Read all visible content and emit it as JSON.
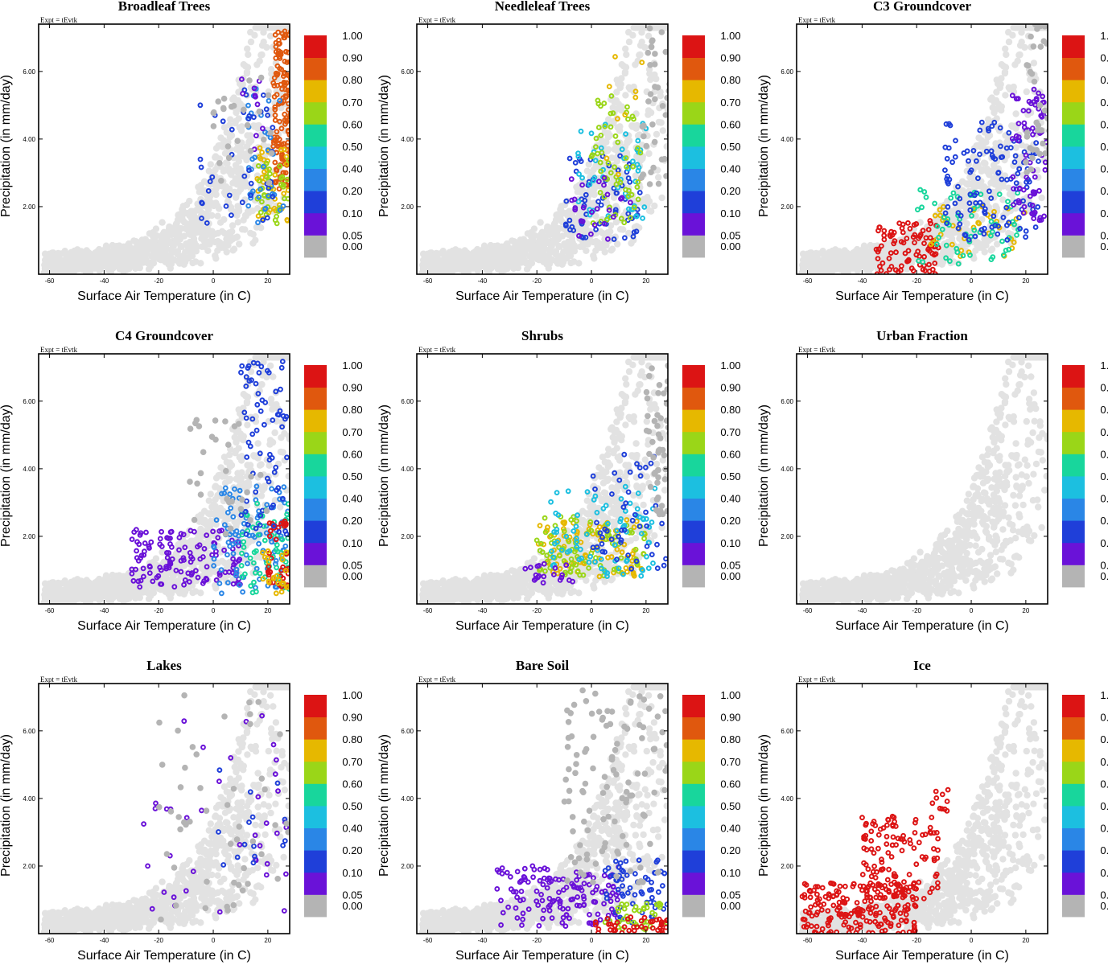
{
  "figure": {
    "expt_label": "Expt = tEvtk",
    "xlabel": "Surface Air Temperature (in C)",
    "ylabel": "Precipitation (in mm/day)",
    "xlim": [
      -64,
      28
    ],
    "ylim": [
      0,
      7.4
    ],
    "xticks": [
      -60,
      -40,
      -20,
      0,
      20
    ],
    "yticks": [
      2.0,
      4.0,
      6.0
    ],
    "ytick_labels": [
      "2.00",
      "4.00",
      "6.00"
    ],
    "colorbar": {
      "labels": [
        "0.00",
        "0.05",
        "0.10",
        "0.20",
        "0.40",
        "0.50",
        "0.60",
        "0.70",
        "0.80",
        "0.90",
        "1.00"
      ],
      "colors": [
        "#b4b4b4",
        "#6a12d8",
        "#1f3fd9",
        "#2a86e6",
        "#1cbfe0",
        "#18d69c",
        "#9ad618",
        "#e6b800",
        "#e0580e",
        "#dc1414"
      ]
    },
    "background_color": "#e2e2e2"
  },
  "chart_data": [
    {
      "type": "scatter",
      "title": "Broadleaf Trees",
      "clusters": [
        {
          "x": [
            22,
            30
          ],
          "y": [
            2.5,
            7.2
          ],
          "level": 8,
          "n": 180
        },
        {
          "x": [
            16,
            28
          ],
          "y": [
            1.5,
            3.8
          ],
          "level": 7,
          "n": 40
        },
        {
          "x": [
            16,
            28
          ],
          "y": [
            1.5,
            3.5
          ],
          "level": 6,
          "n": 35
        },
        {
          "x": [
            12,
            26
          ],
          "y": [
            1.5,
            5.5
          ],
          "level": 3,
          "n": 35
        },
        {
          "x": [
            -5,
            22
          ],
          "y": [
            1.5,
            5.5
          ],
          "level": 2,
          "n": 40
        },
        {
          "x": [
            5,
            22
          ],
          "y": [
            3.5,
            6.3
          ],
          "level": 1,
          "n": 10
        },
        {
          "x": [
            0,
            22
          ],
          "y": [
            2.5,
            6.0
          ],
          "level": 0,
          "n": 25
        }
      ]
    },
    {
      "type": "scatter",
      "title": "Needleleaf Trees",
      "clusters": [
        {
          "x": [
            -10,
            18
          ],
          "y": [
            1.0,
            3.5
          ],
          "level": 2,
          "n": 60
        },
        {
          "x": [
            -5,
            20
          ],
          "y": [
            1.5,
            4.5
          ],
          "level": 4,
          "n": 50
        },
        {
          "x": [
            0,
            18
          ],
          "y": [
            1.5,
            5.5
          ],
          "level": 6,
          "n": 60
        },
        {
          "x": [
            -8,
            15
          ],
          "y": [
            1.0,
            3.0
          ],
          "level": 1,
          "n": 25
        },
        {
          "x": [
            5,
            20
          ],
          "y": [
            2.5,
            6.5
          ],
          "level": 7,
          "n": 10
        },
        {
          "x": [
            18,
            30
          ],
          "y": [
            2.5,
            7.4
          ],
          "level": 0,
          "n": 40
        }
      ]
    },
    {
      "type": "scatter",
      "title": "C3 Groundcover",
      "clusters": [
        {
          "x": [
            -35,
            -12
          ],
          "y": [
            0.0,
            1.6
          ],
          "level": 9,
          "n": 90
        },
        {
          "x": [
            -15,
            20
          ],
          "y": [
            0.5,
            2.0
          ],
          "level": 7,
          "n": 40
        },
        {
          "x": [
            -20,
            18
          ],
          "y": [
            0.3,
            2.5
          ],
          "level": 5,
          "n": 60
        },
        {
          "x": [
            -10,
            25
          ],
          "y": [
            1.0,
            4.5
          ],
          "level": 2,
          "n": 120
        },
        {
          "x": [
            15,
            28
          ],
          "y": [
            1.5,
            5.5
          ],
          "level": 1,
          "n": 70
        },
        {
          "x": [
            20,
            30
          ],
          "y": [
            3.0,
            7.4
          ],
          "level": 0,
          "n": 40
        }
      ]
    },
    {
      "type": "scatter",
      "title": "C4 Groundcover",
      "clusters": [
        {
          "x": [
            -30,
            10
          ],
          "y": [
            0.5,
            2.2
          ],
          "level": 1,
          "n": 130
        },
        {
          "x": [
            0,
            28
          ],
          "y": [
            0.3,
            3.5
          ],
          "level": 3,
          "n": 100
        },
        {
          "x": [
            10,
            28
          ],
          "y": [
            0.3,
            3.0
          ],
          "level": 5,
          "n": 60
        },
        {
          "x": [
            20,
            28
          ],
          "y": [
            0.5,
            2.5
          ],
          "level": 9,
          "n": 35
        },
        {
          "x": [
            18,
            30
          ],
          "y": [
            0.3,
            1.6
          ],
          "level": 7,
          "n": 30
        },
        {
          "x": [
            10,
            28
          ],
          "y": [
            2.0,
            7.2
          ],
          "level": 2,
          "n": 70
        },
        {
          "x": [
            -10,
            20
          ],
          "y": [
            2.0,
            5.5
          ],
          "level": 0,
          "n": 30
        }
      ]
    },
    {
      "type": "scatter",
      "title": "Shrubs",
      "clusters": [
        {
          "x": [
            -20,
            20
          ],
          "y": [
            0.8,
            2.5
          ],
          "level": 7,
          "n": 90
        },
        {
          "x": [
            -20,
            20
          ],
          "y": [
            0.8,
            2.6
          ],
          "level": 6,
          "n": 80
        },
        {
          "x": [
            -15,
            25
          ],
          "y": [
            0.8,
            3.5
          ],
          "level": 4,
          "n": 80
        },
        {
          "x": [
            0,
            28
          ],
          "y": [
            1.0,
            4.5
          ],
          "level": 2,
          "n": 50
        },
        {
          "x": [
            -25,
            -5
          ],
          "y": [
            0.6,
            1.3
          ],
          "level": 1,
          "n": 20
        },
        {
          "x": [
            20,
            30
          ],
          "y": [
            2.5,
            7.2
          ],
          "level": 0,
          "n": 60
        }
      ]
    },
    {
      "type": "scatter",
      "title": "Urban Fraction",
      "clusters": []
    },
    {
      "type": "scatter",
      "title": "Lakes",
      "clusters": [
        {
          "x": [
            -30,
            28
          ],
          "y": [
            0.5,
            6.5
          ],
          "level": 1,
          "n": 40
        },
        {
          "x": [
            0,
            28
          ],
          "y": [
            1.5,
            5.0
          ],
          "level": 2,
          "n": 15
        },
        {
          "x": [
            -20,
            28
          ],
          "y": [
            0.3,
            7.2
          ],
          "level": 0,
          "n": 50
        }
      ]
    },
    {
      "type": "scatter",
      "title": "Bare Soil",
      "clusters": [
        {
          "x": [
            -35,
            10
          ],
          "y": [
            0.2,
            2.0
          ],
          "level": 1,
          "n": 140
        },
        {
          "x": [
            5,
            28
          ],
          "y": [
            0.3,
            2.2
          ],
          "level": 2,
          "n": 60
        },
        {
          "x": [
            5,
            28
          ],
          "y": [
            0.1,
            0.9
          ],
          "level": 6,
          "n": 35
        },
        {
          "x": [
            0,
            28
          ],
          "y": [
            0.0,
            0.5
          ],
          "level": 9,
          "n": 40
        },
        {
          "x": [
            -10,
            28
          ],
          "y": [
            1.5,
            7.2
          ],
          "level": 0,
          "n": 110
        }
      ]
    },
    {
      "type": "scatter",
      "title": "Ice",
      "clusters": [
        {
          "x": [
            -62,
            -20
          ],
          "y": [
            0.0,
            1.5
          ],
          "level": 9,
          "n": 200
        },
        {
          "x": [
            -40,
            -12
          ],
          "y": [
            1.0,
            3.5
          ],
          "level": 9,
          "n": 120
        },
        {
          "x": [
            -15,
            -8
          ],
          "y": [
            3.5,
            4.3
          ],
          "level": 9,
          "n": 10
        }
      ]
    }
  ]
}
